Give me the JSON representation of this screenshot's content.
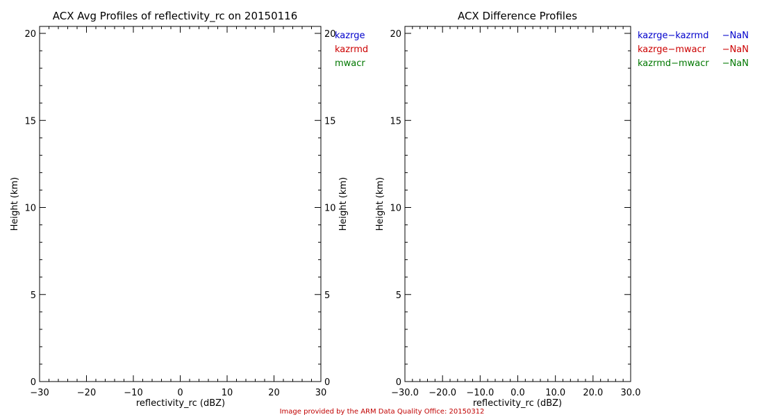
{
  "chart_data": [
    {
      "type": "line",
      "title": "ACX Avg Profiles of reflectivity_rc on 20150116",
      "xlabel": "reflectivity_rc (dBZ)",
      "ylabel": "Height (km)",
      "right_ylabel": "Height (km)",
      "xlim": [
        -30,
        30
      ],
      "ylim": [
        0,
        20.4
      ],
      "x_ticks": [
        -30,
        -20,
        -10,
        0,
        10,
        20,
        30
      ],
      "x_tick_labels": [
        "−30",
        "−20",
        "−10",
        "0",
        "10",
        "20",
        "30"
      ],
      "y_ticks": [
        0,
        5,
        10,
        15,
        20
      ],
      "y_tick_labels": [
        "0",
        "5",
        "10",
        "15",
        "20"
      ],
      "grid": false,
      "legend_placement": "right-outside-top",
      "series": [
        {
          "name": "kazrge",
          "color": "#0000cc",
          "values": []
        },
        {
          "name": "kazrmd",
          "color": "#cc0000",
          "values": []
        },
        {
          "name": "mwacr",
          "color": "#007700",
          "values": []
        }
      ]
    },
    {
      "type": "line",
      "title": "ACX Difference Profiles",
      "xlabel": "reflectivity_rc (dBZ)",
      "ylabel": "Height (km)",
      "xlim": [
        -30,
        30
      ],
      "ylim": [
        0,
        20.4
      ],
      "x_ticks": [
        -30,
        -20,
        -10,
        0,
        10,
        20,
        30
      ],
      "x_tick_labels": [
        "−30.0",
        "−20.0",
        "−10.0",
        "0.0",
        "10.0",
        "20.0",
        "30.0"
      ],
      "y_ticks": [
        0,
        5,
        10,
        15,
        20
      ],
      "y_tick_labels": [
        "0",
        "5",
        "10",
        "15",
        "20"
      ],
      "grid": false,
      "legend_placement": "right-outside-top",
      "series": [
        {
          "name": "kazrge−kazrmd",
          "stat": "−NaN",
          "color": "#0000cc",
          "values": []
        },
        {
          "name": "kazrge−mwacr",
          "stat": "−NaN",
          "color": "#cc0000",
          "values": []
        },
        {
          "name": "kazrmd−mwacr",
          "stat": "−NaN",
          "color": "#007700",
          "values": []
        }
      ]
    }
  ],
  "footer": {
    "credit": "Image provided by the ARM Data Quality Office: 20150312"
  }
}
